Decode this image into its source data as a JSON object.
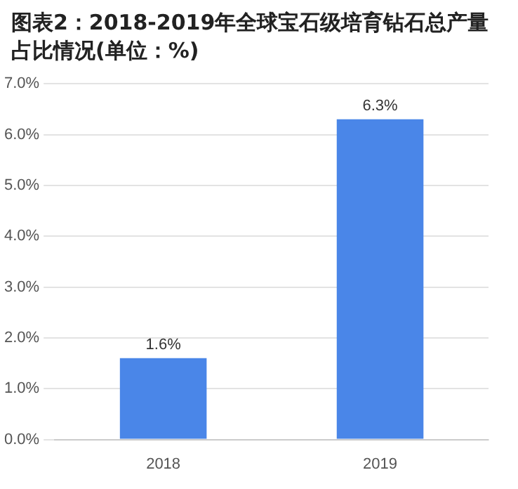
{
  "chart_data": {
    "type": "bar",
    "title": "图表2：2018-2019年全球宝石级培育钻石总产量占比情况(单位：%)",
    "categories": [
      "2018",
      "2019"
    ],
    "values": [
      1.6,
      6.3
    ],
    "value_labels": [
      "1.6%",
      "6.3%"
    ],
    "color": "#4a86e8",
    "ylim": [
      0,
      7
    ],
    "yticks": [
      {
        "value": 0,
        "label": "0.0%"
      },
      {
        "value": 1,
        "label": "1.0%"
      },
      {
        "value": 2,
        "label": "2.0%"
      },
      {
        "value": 3,
        "label": "3.0%"
      },
      {
        "value": 4,
        "label": "4.0%"
      },
      {
        "value": 5,
        "label": "5.0%"
      },
      {
        "value": 6,
        "label": "6.0%"
      },
      {
        "value": 7,
        "label": "7.0%"
      }
    ],
    "grid": "y",
    "legend": false
  }
}
